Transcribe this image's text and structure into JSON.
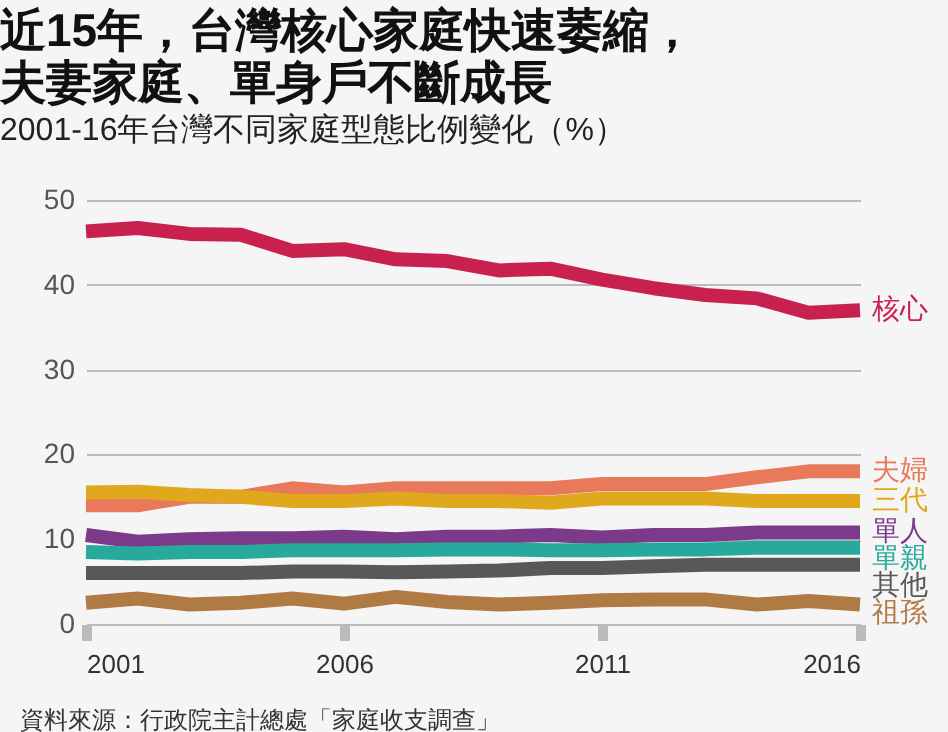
{
  "chart_data": {
    "type": "line",
    "title": "近15年，台灣核心家庭快速萎縮，夫妻家庭、單身戶不斷成長",
    "subtitle": "2001-16年台灣不同家庭型態比例變化（%）",
    "x": [
      2001,
      2002,
      2003,
      2004,
      2005,
      2006,
      2007,
      2008,
      2009,
      2010,
      2011,
      2012,
      2013,
      2014,
      2015,
      2016
    ],
    "series": [
      {
        "name": "核心",
        "color": "#c8204f",
        "values": [
          46.3,
          46.7,
          46.0,
          45.9,
          44.0,
          44.2,
          43.0,
          42.8,
          41.7,
          41.9,
          40.6,
          39.6,
          38.8,
          38.4,
          36.7,
          37.0
        ]
      },
      {
        "name": "夫婦",
        "color": "#e8795a",
        "values": [
          14.0,
          14.0,
          15.0,
          15.0,
          16.0,
          15.5,
          16.0,
          16.0,
          16.0,
          16.0,
          16.5,
          16.5,
          16.5,
          17.3,
          18.0,
          18.0
        ]
      },
      {
        "name": "三代",
        "color": "#e0a81c",
        "values": [
          15.5,
          15.6,
          15.2,
          15.0,
          14.5,
          14.5,
          14.8,
          14.5,
          14.5,
          14.3,
          14.8,
          14.8,
          14.8,
          14.5,
          14.5,
          14.5
        ]
      },
      {
        "name": "單人",
        "color": "#7b3b8a",
        "values": [
          10.5,
          9.7,
          10.0,
          10.1,
          10.1,
          10.3,
          10.0,
          10.3,
          10.3,
          10.5,
          10.2,
          10.5,
          10.5,
          10.8,
          10.8,
          10.8
        ]
      },
      {
        "name": "單親",
        "color": "#27aa9c",
        "values": [
          8.5,
          8.3,
          8.5,
          8.5,
          8.7,
          8.7,
          8.7,
          8.8,
          8.8,
          8.7,
          8.7,
          8.8,
          8.8,
          9.0,
          9.0,
          9.0
        ]
      },
      {
        "name": "其他",
        "color": "#58585a",
        "values": [
          6.0,
          6.0,
          6.0,
          6.0,
          6.2,
          6.2,
          6.1,
          6.2,
          6.3,
          6.6,
          6.6,
          6.8,
          7.0,
          7.0,
          7.0,
          7.0
        ]
      },
      {
        "name": "祖孫",
        "color": "#b07a45",
        "values": [
          2.5,
          3.0,
          2.3,
          2.5,
          3.0,
          2.4,
          3.2,
          2.6,
          2.3,
          2.5,
          2.8,
          2.9,
          2.9,
          2.3,
          2.7,
          2.3
        ]
      }
    ],
    "xlim": [
      2001,
      2016
    ],
    "xticks": [
      2001,
      2006,
      2011,
      2016
    ],
    "ylim": [
      0,
      50
    ],
    "yticks": [
      0,
      10,
      20,
      30,
      40,
      50
    ],
    "grid": "y",
    "legend": false,
    "marker": "none",
    "line_style": "solid",
    "annotations": [
      "資料來源：行政院主計總處「家庭收支調查」"
    ]
  }
}
